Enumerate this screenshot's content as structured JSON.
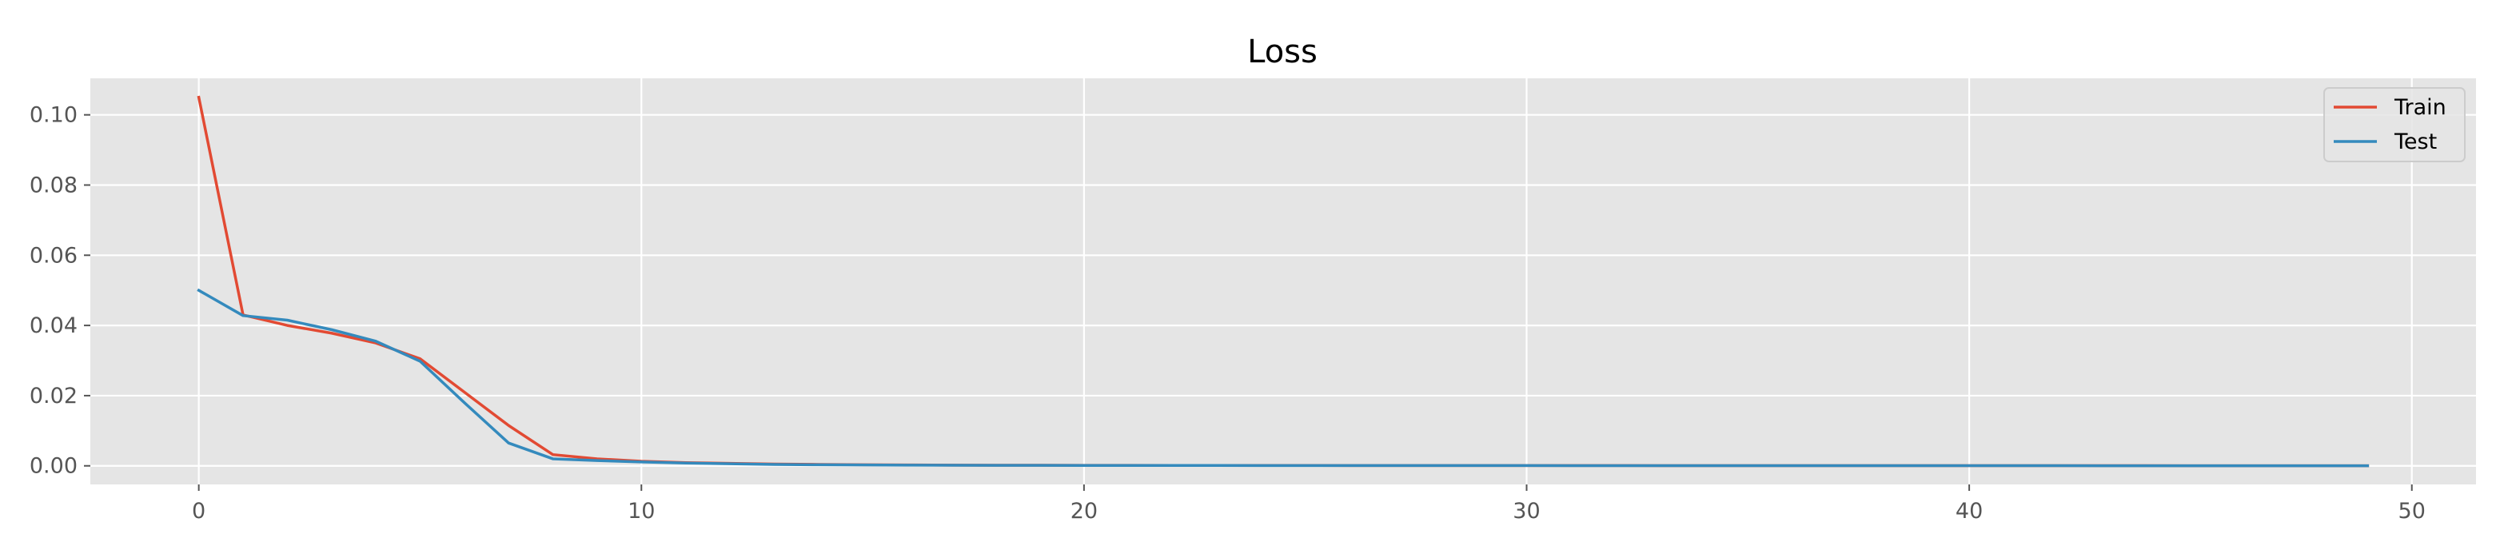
{
  "chart_data": {
    "type": "line",
    "title": "Loss",
    "xlabel": "",
    "ylabel": "",
    "xlim": [
      -2.45,
      51.45
    ],
    "ylim": [
      -0.0053,
      0.1104
    ],
    "xticks": [
      0,
      10,
      20,
      30,
      40,
      50
    ],
    "yticks": [
      0.0,
      0.02,
      0.04,
      0.06,
      0.08,
      0.1
    ],
    "xtick_labels": [
      "0",
      "10",
      "20",
      "30",
      "40",
      "50"
    ],
    "ytick_labels": [
      "0.00",
      "0.02",
      "0.04",
      "0.06",
      "0.08",
      "0.10"
    ],
    "grid": true,
    "legend_position": "top-right",
    "style": {
      "background": "#E5E5E5",
      "grid_color": "#FFFFFF",
      "tick_color": "#555555"
    },
    "x": [
      0,
      1,
      2,
      3,
      4,
      5,
      6,
      7,
      8,
      9,
      10,
      11,
      12,
      13,
      14,
      15,
      16,
      17,
      18,
      19,
      20,
      21,
      22,
      23,
      24,
      25,
      26,
      27,
      28,
      29,
      30,
      31,
      32,
      33,
      34,
      35,
      36,
      37,
      38,
      39,
      40,
      41,
      42,
      43,
      44,
      45,
      46,
      47,
      48,
      49
    ],
    "series": [
      {
        "name": "Train",
        "color": "#E24A33",
        "values": [
          0.105,
          0.043,
          0.04,
          0.0378,
          0.035,
          0.0305,
          0.021,
          0.0115,
          0.0032,
          0.002,
          0.0013,
          0.0009,
          0.0007,
          0.0005,
          0.0004,
          0.0003,
          0.00025,
          0.0002,
          0.00018,
          0.00016,
          0.00014,
          0.00013,
          0.00012,
          0.00011,
          0.0001,
          0.0001,
          9e-05,
          9e-05,
          8e-05,
          8e-05,
          7e-05,
          7e-05,
          7e-05,
          6e-05,
          6e-05,
          6e-05,
          5e-05,
          5e-05,
          5e-05,
          5e-05,
          4e-05,
          4e-05,
          4e-05,
          4e-05,
          4e-05,
          3e-05,
          3e-05,
          3e-05,
          3e-05,
          3e-05
        ]
      },
      {
        "name": "Test",
        "color": "#348ABD",
        "values": [
          0.05,
          0.0428,
          0.0415,
          0.0388,
          0.0355,
          0.0298,
          0.018,
          0.0065,
          0.002,
          0.0015,
          0.0011,
          0.0008,
          0.0006,
          0.0004,
          0.0003,
          0.00025,
          0.0002,
          0.00018,
          0.00015,
          0.00013,
          0.00012,
          0.00011,
          0.0001,
          0.0001,
          9e-05,
          9e-05,
          8e-05,
          8e-05,
          7e-05,
          7e-05,
          7e-05,
          6e-05,
          6e-05,
          6e-05,
          5e-05,
          5e-05,
          5e-05,
          5e-05,
          4e-05,
          4e-05,
          4e-05,
          4e-05,
          4e-05,
          3e-05,
          3e-05,
          3e-05,
          3e-05,
          3e-05,
          3e-05,
          3e-05
        ]
      }
    ]
  }
}
